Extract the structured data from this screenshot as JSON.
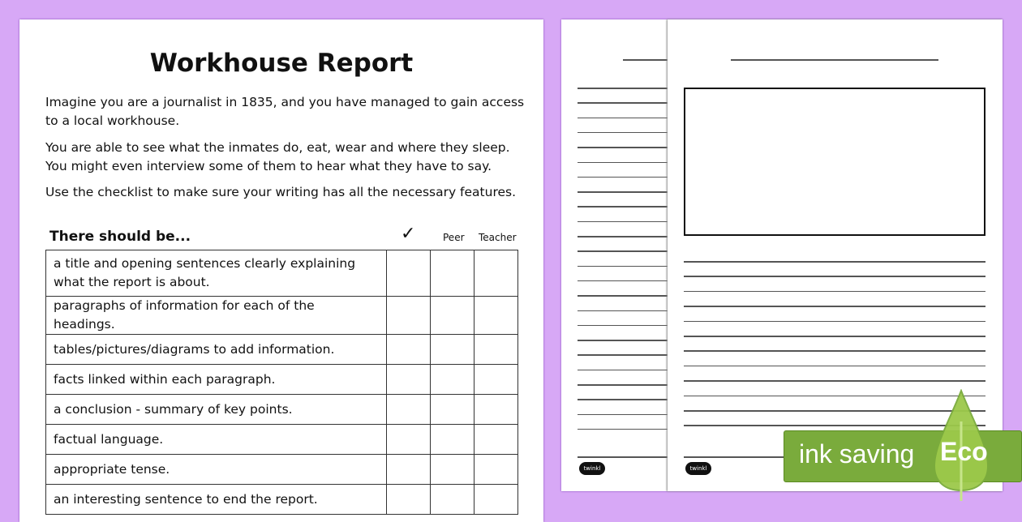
{
  "worksheet": {
    "title": "Workhouse Report",
    "paragraphs": [
      "Imagine you are a journalist in 1835, and you have managed to gain access to a local workhouse.",
      "You are able to see what the inmates do, eat, wear and where they sleep. You might even interview some of them to hear what they have to say.",
      "Use the checklist to make sure your writing has all the necessary features."
    ],
    "checklist": {
      "heading": "There should be...",
      "columns": [
        "✓",
        "Peer",
        "Teacher"
      ],
      "items": [
        "a title and opening sentences clearly explaining what the report is about.",
        "paragraphs of information for each of the headings.",
        "tables/pictures/diagrams to add information.",
        "facts linked within each paragraph.",
        "a conclusion - summary of key points.",
        "factual language.",
        "appropriate tense.",
        "an interesting sentence to end the report."
      ]
    }
  },
  "logo": "twinkl",
  "badge": {
    "label": "ink saving",
    "eco": "Eco",
    "color": "#7aab3c"
  },
  "background_color": "#d7a8f6"
}
